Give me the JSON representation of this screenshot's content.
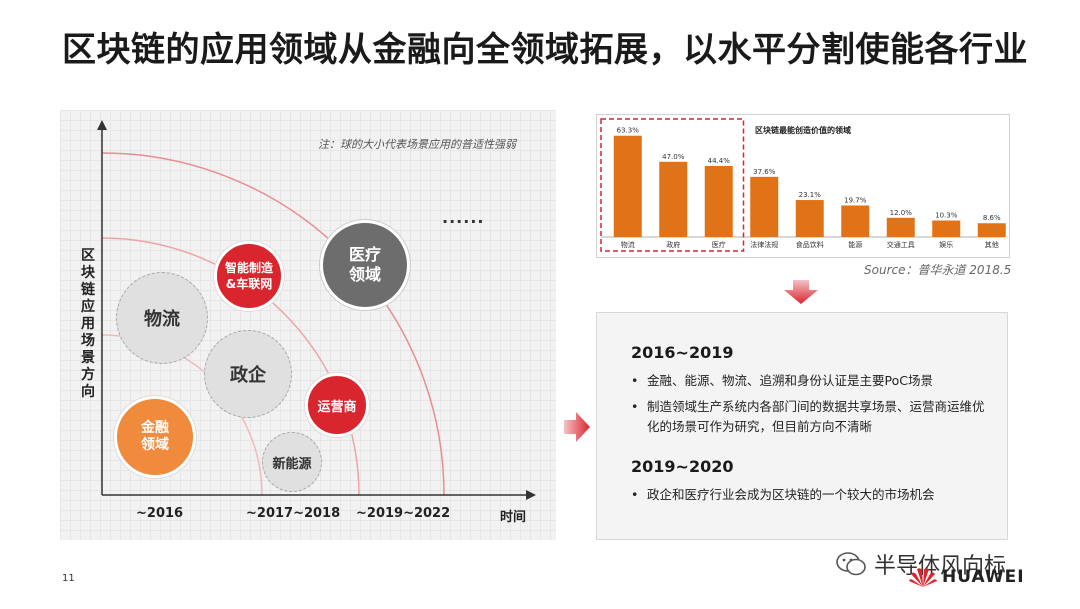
{
  "title": "区块链的应用领域从金融向全领域拓展，以水平分割使能各行业",
  "left_chart": {
    "note": "注：球的大小代表场景应用的普适性强弱",
    "y_axis_label": [
      "区",
      "块",
      "链",
      "应",
      "用",
      "场",
      "景",
      "方",
      "向"
    ],
    "x_axis_label": "时间",
    "x_ticks": [
      "~2016",
      "~2017~2018",
      "~2019~2022"
    ],
    "ellipsis": "......",
    "bubbles": {
      "logistics": "物流",
      "government": "政企",
      "finance": [
        "金融",
        "领域"
      ],
      "new_energy": "新能源",
      "smart_manufacturing": [
        "智能制造",
        "&车联网"
      ],
      "operator": "运营商",
      "medical": [
        "医疗",
        "领域"
      ]
    },
    "colors": {
      "red": "#d9252e",
      "orange": "#f08a3c",
      "gray": "#e0e0e0",
      "dark": "#6d6d6d"
    }
  },
  "chart_data": {
    "type": "bar",
    "title": "区块链最能创造价值的领域",
    "categories": [
      "物流",
      "政府",
      "医疗",
      "法律法规",
      "食品饮料",
      "能源",
      "交通工具",
      "娱乐",
      "其他"
    ],
    "values": [
      63.3,
      47.0,
      44.4,
      37.6,
      23.1,
      19.7,
      12.0,
      10.3,
      8.6
    ],
    "value_labels": [
      "63.3%",
      "47.0%",
      "44.4%",
      "37.6%",
      "23.1%",
      "19.7%",
      "12.0%",
      "10.3%",
      "8.6%"
    ],
    "ylim": [
      0,
      70
    ],
    "bar_color": "#e07318",
    "highlight_box": "first 3 bars, dashed red"
  },
  "source": "Source：普华永道 2018.5",
  "textbox": {
    "period1": "2016~2019",
    "bullets1": [
      "金融、能源、物流、追溯和身份认证是主要PoC场景",
      "制造领域生产系统内各部门间的数据共享场景、运营商运维优化的场景可作为研究，但目前方向不清晰"
    ],
    "period2": "2019~2020",
    "bullets2": [
      "政企和医疗行业会成为区块链的一个较大的市场机会"
    ],
    "bullet_symbol": "•"
  },
  "page_number": "11",
  "watermark": "半导体风向标",
  "brand": "HUAWEI",
  "accent_red": "#d9252e"
}
